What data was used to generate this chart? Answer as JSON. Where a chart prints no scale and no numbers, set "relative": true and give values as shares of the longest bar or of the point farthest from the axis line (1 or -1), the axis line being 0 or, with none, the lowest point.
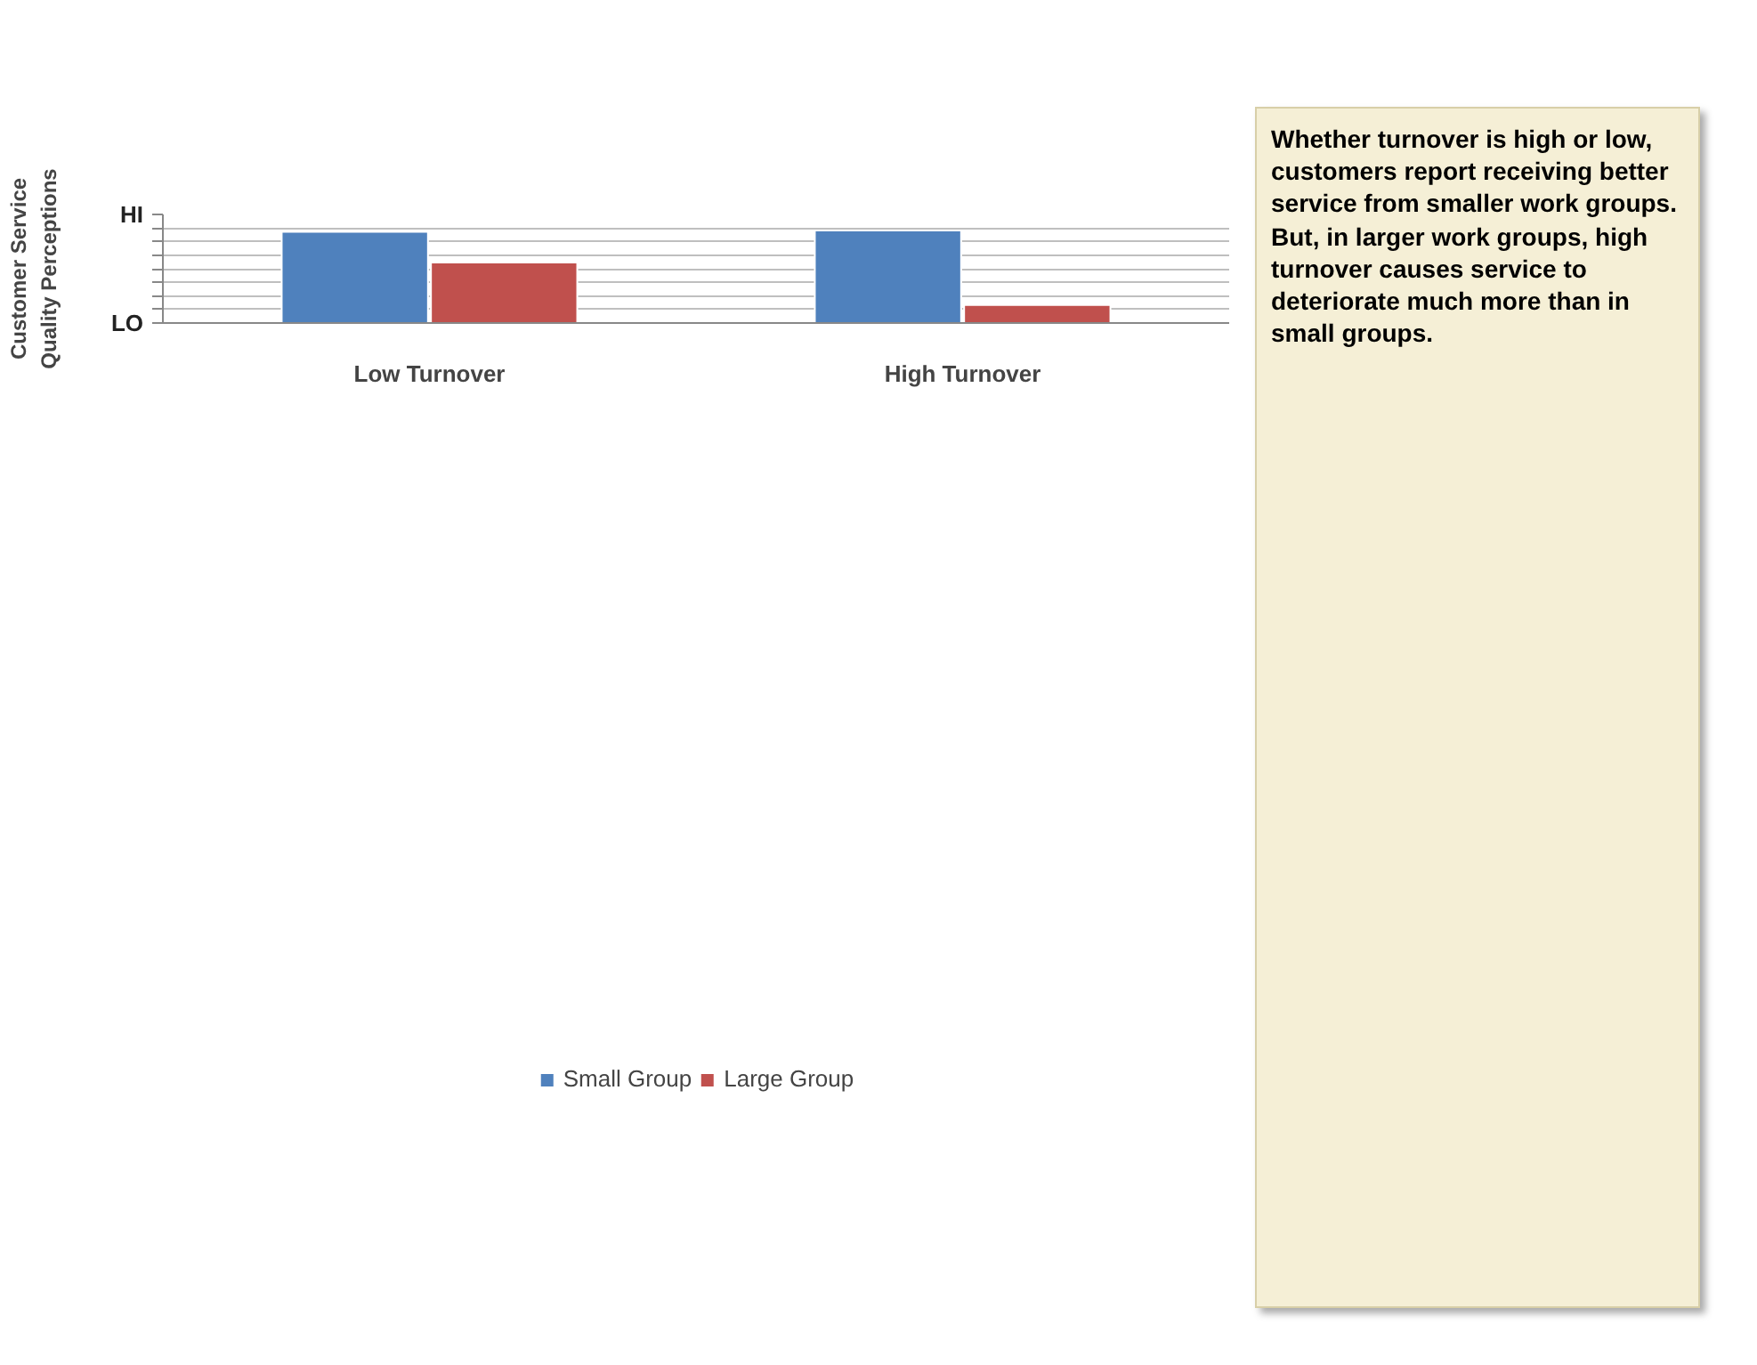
{
  "chart_data": {
    "type": "bar",
    "relative": true,
    "ylabel": "Customer Service\nQuality Perceptions",
    "categories": [
      "Low Turnover",
      "High Turnover"
    ],
    "series": [
      {
        "name": "Small Group",
        "color": "#4f81bd",
        "values": [
          0.985,
          1
        ]
      },
      {
        "name": "Large Group",
        "color": "#c0504d",
        "values": [
          0.653,
          0.195
        ]
      }
    ],
    "grid": "y",
    "legend": "bottom",
    "annotations": [
      "Whether turnover is high or low, customers report receiving better service from smaller work groups. But, in larger work groups, high turnover causes service to deteriorate much more than in small groups.",
      "HI",
      "LO"
    ]
  }
}
